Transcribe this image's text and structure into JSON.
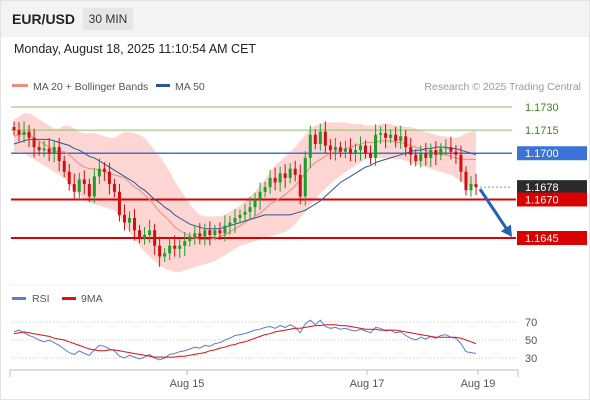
{
  "header": {
    "symbol": "EUR/USD",
    "timeframe": "30 MIN",
    "datetime": "Monday, August 18, 2025 11:10:54 AM CET"
  },
  "legend": {
    "items": [
      {
        "label": "MA 20 + Bollinger Bands",
        "color": "#f28b82"
      },
      {
        "label": "MA 50",
        "color": "#2f5597"
      }
    ],
    "credit": "Research © 2025 Trading Central"
  },
  "rsi_legend": {
    "items": [
      {
        "label": "RSI",
        "color": "#5b7bd5"
      },
      {
        "label": "9MA",
        "color": "#e01010"
      }
    ]
  },
  "colors": {
    "bull": "#1a9e2c",
    "bear": "#d01010",
    "band": "#fdd3d0",
    "ma20": "#f28b82",
    "ma50": "#2f5597",
    "target_green": "#8ec06c",
    "pivot_blue": "#3b73d6",
    "support_red": "#d80000",
    "arrow": "#2563b0"
  },
  "chart_data": [
    {
      "type": "candlestick",
      "title": "EUR/USD 30 MIN",
      "xlabel": "",
      "ylabel": "",
      "x_ticks": [
        "Aug 15",
        "Aug 17",
        "Aug 19"
      ],
      "y_tick_labels": [
        "1.1730",
        "1.1715",
        "1.1700",
        "1.1678",
        "1.1670",
        "1.1645"
      ],
      "ylim": [
        1.1608,
        1.1742
      ],
      "levels": [
        {
          "label": "1.1730",
          "value": 1.173,
          "style": "green-target"
        },
        {
          "label": "1.1715",
          "value": 1.1715,
          "style": "green-target"
        },
        {
          "label": "1.1700",
          "value": 1.17,
          "style": "blue-pivot"
        },
        {
          "label": "1.1678",
          "value": 1.1678,
          "style": "last-price"
        },
        {
          "label": "1.1670",
          "value": 1.167,
          "style": "red-support"
        },
        {
          "label": "1.1645",
          "value": 1.1645,
          "style": "red-support"
        }
      ],
      "close": [
        1.1715,
        1.1712,
        1.1714,
        1.171,
        1.1704,
        1.1702,
        1.1703,
        1.17,
        1.1704,
        1.1695,
        1.1688,
        1.168,
        1.1675,
        1.1683,
        1.168,
        1.1672,
        1.1685,
        1.169,
        1.1688,
        1.168,
        1.1675,
        1.166,
        1.1655,
        1.1658,
        1.165,
        1.1645,
        1.1647,
        1.165,
        1.164,
        1.1633,
        1.1635,
        1.164,
        1.1638,
        1.164,
        1.1643,
        1.1645,
        1.1648,
        1.1646,
        1.165,
        1.1647,
        1.165,
        1.1648,
        1.1653,
        1.1655,
        1.1658,
        1.166,
        1.1662,
        1.1665,
        1.167,
        1.1675,
        1.1678,
        1.1684,
        1.1681,
        1.1687,
        1.1684,
        1.169,
        1.1686,
        1.1672,
        1.1697,
        1.1712,
        1.1706,
        1.1714,
        1.1705,
        1.1702,
        1.1704,
        1.1701,
        1.1703,
        1.17,
        1.1702,
        1.1705,
        1.17,
        1.1697,
        1.1712,
        1.1713,
        1.171,
        1.1712,
        1.1708,
        1.1711,
        1.1704,
        1.1699,
        1.1695,
        1.17,
        1.1697,
        1.1702,
        1.1699,
        1.1703,
        1.1704,
        1.1701,
        1.1699,
        1.1688,
        1.1676,
        1.168,
        1.1678
      ],
      "bb_upper": [
        1.1722,
        1.1724,
        1.1726,
        1.1726,
        1.1724,
        1.1722,
        1.172,
        1.1718,
        1.1716,
        1.1716,
        1.1718,
        1.1718,
        1.1716,
        1.1714,
        1.1713,
        1.1713,
        1.1713,
        1.1712,
        1.1711,
        1.171,
        1.171,
        1.1712,
        1.1714,
        1.1714,
        1.1713,
        1.1712,
        1.171,
        1.1706,
        1.1702,
        1.1698,
        1.1693,
        1.1688,
        1.1682,
        1.1677,
        1.1672,
        1.1667,
        1.1663,
        1.166,
        1.1659,
        1.1659,
        1.1659,
        1.1659,
        1.166,
        1.1662,
        1.1664,
        1.1666,
        1.1669,
        1.1672,
        1.1675,
        1.1679,
        1.1683,
        1.1688,
        1.1692,
        1.1695,
        1.1698,
        1.1701,
        1.1704,
        1.1708,
        1.1712,
        1.1716,
        1.1718,
        1.1719,
        1.172,
        1.172,
        1.172,
        1.172,
        1.172,
        1.1719,
        1.1719,
        1.1719,
        1.1718,
        1.1718,
        1.1718,
        1.1719,
        1.1719,
        1.1719,
        1.1718,
        1.1718,
        1.1717,
        1.1717,
        1.1716,
        1.1715,
        1.1714,
        1.1713,
        1.1712,
        1.1711,
        1.1711,
        1.171,
        1.171,
        1.1711,
        1.1713,
        1.1714,
        1.1715
      ],
      "bb_lower": [
        1.17,
        1.1701,
        1.17,
        1.1698,
        1.1696,
        1.1694,
        1.1692,
        1.169,
        1.1688,
        1.1686,
        1.1684,
        1.168,
        1.1676,
        1.1673,
        1.167,
        1.1668,
        1.1667,
        1.1666,
        1.1665,
        1.1664,
        1.1663,
        1.1659,
        1.1654,
        1.1649,
        1.1644,
        1.164,
        1.1636,
        1.1633,
        1.163,
        1.1627,
        1.1625,
        1.1624,
        1.1623,
        1.1623,
        1.1624,
        1.1625,
        1.1626,
        1.1627,
        1.1628,
        1.1629,
        1.163,
        1.1632,
        1.1634,
        1.1636,
        1.1638,
        1.164,
        1.1641,
        1.1642,
        1.1643,
        1.1644,
        1.1645,
        1.1646,
        1.1647,
        1.1648,
        1.1649,
        1.1651,
        1.1654,
        1.1658,
        1.1662,
        1.1666,
        1.167,
        1.1674,
        1.1677,
        1.168,
        1.1683,
        1.1685,
        1.1688,
        1.169,
        1.1692,
        1.1694,
        1.1696,
        1.1697,
        1.1697,
        1.1697,
        1.1697,
        1.1697,
        1.1696,
        1.1696,
        1.1695,
        1.1694,
        1.1693,
        1.1692,
        1.1691,
        1.169,
        1.1689,
        1.1688,
        1.1687,
        1.1686,
        1.1684,
        1.1682,
        1.168,
        1.1679,
        1.1678
      ],
      "ma20": [
        1.1711,
        1.1712,
        1.1713,
        1.1712,
        1.171,
        1.1708,
        1.1706,
        1.1704,
        1.1702,
        1.1701,
        1.1701,
        1.1699,
        1.1696,
        1.1693,
        1.1691,
        1.169,
        1.169,
        1.1689,
        1.1688,
        1.1687,
        1.1686,
        1.1685,
        1.1684,
        1.1681,
        1.1678,
        1.1676,
        1.1673,
        1.167,
        1.1666,
        1.1662,
        1.1659,
        1.1656,
        1.1652,
        1.165,
        1.1648,
        1.1646,
        1.1645,
        1.1644,
        1.1644,
        1.1644,
        1.1645,
        1.1646,
        1.1647,
        1.1649,
        1.1651,
        1.1653,
        1.1655,
        1.1657,
        1.1659,
        1.1661,
        1.1664,
        1.1667,
        1.1669,
        1.1671,
        1.1673,
        1.1676,
        1.1679,
        1.1683,
        1.1687,
        1.1691,
        1.1694,
        1.1696,
        1.1698,
        1.17,
        1.1701,
        1.1702,
        1.1703,
        1.1704,
        1.1705,
        1.1706,
        1.1707,
        1.1707,
        1.1707,
        1.1708,
        1.1708,
        1.1708,
        1.1707,
        1.1707,
        1.1706,
        1.1705,
        1.1704,
        1.1703,
        1.1702,
        1.1701,
        1.17,
        1.1699,
        1.1699,
        1.1698,
        1.1697,
        1.1696,
        1.1696,
        1.1696,
        1.1696
      ],
      "ma50": [
        1.1706,
        1.1707,
        1.1708,
        1.1709,
        1.1709,
        1.1709,
        1.1709,
        1.1709,
        1.1708,
        1.1707,
        1.1706,
        1.1705,
        1.1703,
        1.1702,
        1.17,
        1.1698,
        1.1697,
        1.1695,
        1.1693,
        1.1691,
        1.1689,
        1.1687,
        1.1685,
        1.1683,
        1.1681,
        1.1678,
        1.1676,
        1.1673,
        1.167,
        1.1668,
        1.1665,
        1.1663,
        1.166,
        1.1658,
        1.1656,
        1.1654,
        1.1653,
        1.1652,
        1.1651,
        1.1651,
        1.1651,
        1.1651,
        1.1652,
        1.1653,
        1.1654,
        1.1655,
        1.1656,
        1.1657,
        1.1658,
        1.1659,
        1.166,
        1.166,
        1.166,
        1.166,
        1.166,
        1.166,
        1.1661,
        1.1662,
        1.1663,
        1.1665,
        1.1667,
        1.1669,
        1.1672,
        1.1675,
        1.1678,
        1.1681,
        1.1683,
        1.1685,
        1.1687,
        1.1689,
        1.1691,
        1.1692,
        1.1694,
        1.1695,
        1.1696,
        1.1697,
        1.1698,
        1.1699,
        1.17,
        1.1701,
        1.1702,
        1.1702,
        1.1703,
        1.1703,
        1.1704,
        1.1704,
        1.1704,
        1.1703,
        1.1703,
        1.1702,
        1.1701,
        1.17,
        1.1699
      ],
      "projection": {
        "from": 1.1678,
        "to": 1.1645
      }
    },
    {
      "type": "line",
      "title": "RSI",
      "y_ticks": [
        70,
        50,
        30
      ],
      "ylim": [
        16,
        86
      ],
      "series": [
        {
          "name": "RSI",
          "values": [
            59,
            61,
            58,
            55,
            53,
            50,
            48,
            50,
            47,
            44,
            40,
            36,
            34,
            38,
            35,
            33,
            39,
            44,
            43,
            40,
            38,
            32,
            30,
            33,
            31,
            29,
            31,
            34,
            30,
            28,
            30,
            34,
            35,
            37,
            38,
            40,
            42,
            41,
            44,
            43,
            46,
            47,
            50,
            52,
            55,
            56,
            57,
            59,
            61,
            62,
            64,
            65,
            63,
            66,
            64,
            67,
            64,
            58,
            68,
            72,
            67,
            72,
            65,
            63,
            64,
            62,
            63,
            61,
            60,
            62,
            60,
            58,
            64,
            63,
            60,
            61,
            58,
            59,
            55,
            52,
            50,
            53,
            51,
            54,
            52,
            55,
            56,
            53,
            52,
            46,
            37,
            36,
            35
          ]
        },
        {
          "name": "9MA",
          "values": [
            57,
            58,
            59,
            58,
            57,
            56,
            55,
            54,
            52,
            51,
            50,
            48,
            46,
            44,
            42,
            40,
            39,
            38,
            38,
            39,
            39,
            38,
            37,
            36,
            35,
            34,
            33,
            32,
            31,
            31,
            31,
            31,
            31,
            32,
            32,
            33,
            34,
            35,
            36,
            38,
            39,
            41,
            42,
            44,
            45,
            47,
            48,
            50,
            52,
            54,
            56,
            57,
            59,
            60,
            61,
            62,
            63,
            63,
            64,
            65,
            66,
            66,
            67,
            67,
            67,
            66,
            66,
            65,
            64,
            63,
            62,
            62,
            62,
            61,
            61,
            61,
            61,
            60,
            59,
            58,
            57,
            56,
            55,
            54,
            53,
            53,
            53,
            53,
            53,
            52,
            50,
            48,
            46
          ]
        }
      ]
    }
  ]
}
